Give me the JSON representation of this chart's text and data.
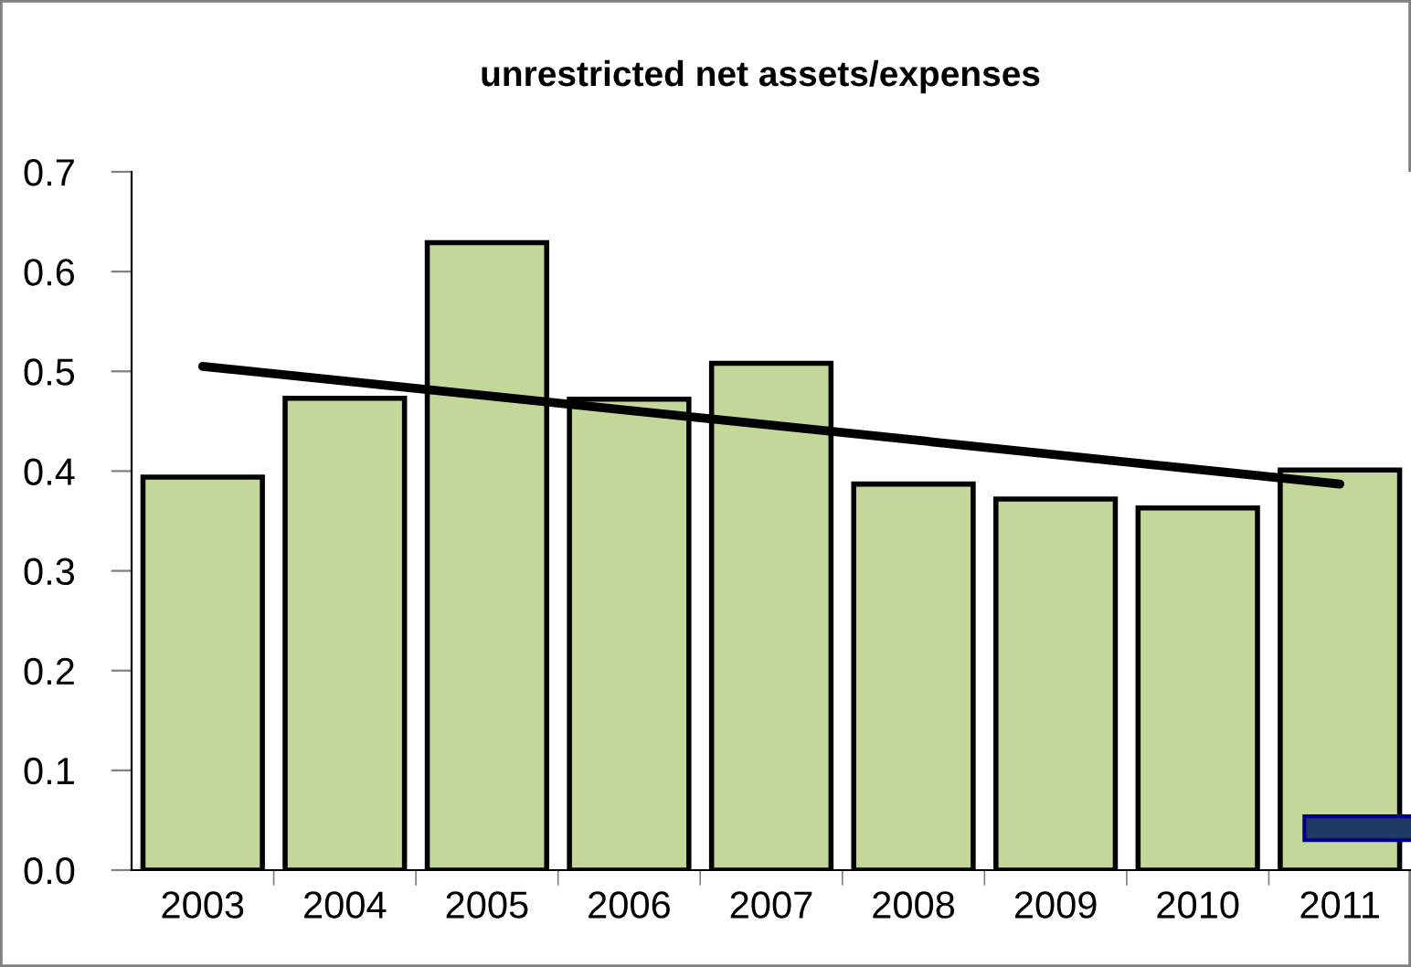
{
  "chart_data": {
    "type": "bar",
    "title": "unrestricted net assets/expenses",
    "categories": [
      "2003",
      "2004",
      "2005",
      "2006",
      "2007",
      "2008",
      "2009",
      "2010",
      "2011"
    ],
    "series": [
      {
        "color": "#c4d79b",
        "values": [
          0.394,
          0.473,
          0.629,
          0.472,
          0.508,
          0.387,
          0.372,
          0.363,
          0.401
        ]
      },
      {
        "type": "line",
        "color": "#000000",
        "values": [
          0.505,
          null,
          null,
          null,
          null,
          null,
          null,
          null,
          0.387
        ]
      },
      {
        "type": "bar",
        "color": "#1f3864",
        "base": [
          null,
          null,
          null,
          null,
          null,
          null,
          null,
          null,
          0.03
        ],
        "values": [
          null,
          null,
          null,
          null,
          null,
          null,
          null,
          null,
          0.024
        ]
      }
    ],
    "ylim": [
      0,
      0.7
    ],
    "yticks": [
      {
        "value": 0,
        "label": "0.0"
      },
      0.1,
      0.2,
      0.3,
      0.4,
      0.5,
      0.6,
      0.7
    ],
    "grid": false,
    "legend": false
  }
}
